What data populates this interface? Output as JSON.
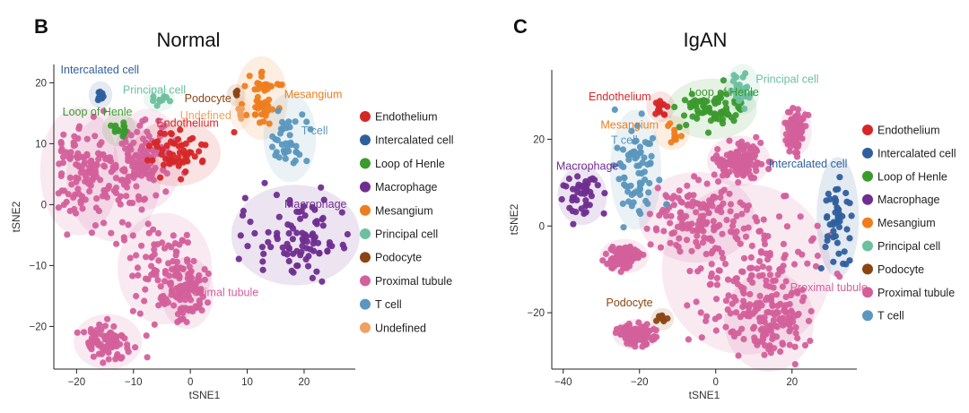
{
  "colors": {
    "Endothelium": "#d62728",
    "Intercalated cell": "#2f5f9e",
    "Loop of Henle": "#3b9a2e",
    "Macrophage": "#6f2e8f",
    "Mesangium": "#ee7d1e",
    "Principal cell": "#6cc0a0",
    "Podocyte": "#8b4513",
    "Proximal tubule": "#d3609b",
    "T cell": "#5b97bd",
    "Undefined": "#f0a060"
  },
  "chart_data": [
    {
      "type": "scatter",
      "panel_label": "B",
      "title": "Normal",
      "xlabel": "tSNE1",
      "ylabel": "tSNE2",
      "xlim": [
        -24,
        29
      ],
      "ylim": [
        -27,
        23
      ],
      "xticks": [
        -20,
        -10,
        0,
        10,
        20
      ],
      "yticks": [
        -20,
        -10,
        0,
        10,
        20
      ],
      "legend": [
        "Endothelium",
        "Intercalated cell",
        "Loop of Henle",
        "Macrophage",
        "Mesangium",
        "Principal cell",
        "Podocyte",
        "Proximal tubule",
        "T cell",
        "Undefined"
      ],
      "annotations": [
        {
          "text": "Intercalated cell",
          "cluster": "Intercalated cell"
        },
        {
          "text": "Principal cell",
          "cluster": "Principal cell"
        },
        {
          "text": "Loop of Henle",
          "cluster": "Loop of Henle"
        },
        {
          "text": "Podocyte",
          "cluster": "Podocyte"
        },
        {
          "text": "Mesangium",
          "cluster": "Mesangium"
        },
        {
          "text": "Undefined",
          "cluster": "Undefined"
        },
        {
          "text": "Endothelium",
          "cluster": "Endothelium"
        },
        {
          "text": "T cell",
          "cluster": "T cell"
        },
        {
          "text": "Macrophage",
          "cluster": "Macrophage"
        },
        {
          "text": "Proximal tubule",
          "cluster": "Proximal tubule"
        }
      ],
      "clusters": [
        {
          "name": "Proximal tubule",
          "points": 520,
          "blobs": [
            {
              "cx": -19.5,
              "cy": 5.5,
              "sx": 2.6,
              "sy": 4.2
            },
            {
              "cx": -13.5,
              "cy": 4.5,
              "sx": 3.2,
              "sy": 4.2
            },
            {
              "cx": -7.5,
              "cy": 7.5,
              "sx": 2.2,
              "sy": 3.2
            },
            {
              "cx": -4.5,
              "cy": -10.5,
              "sx": 3.2,
              "sy": 3.6
            },
            {
              "cx": -0.5,
              "cy": -14.5,
              "sx": 1.6,
              "sy": 2.2
            },
            {
              "cx": -14.5,
              "cy": -22.5,
              "sx": 2.2,
              "sy": 1.6
            }
          ]
        },
        {
          "name": "Endothelium",
          "points": 55,
          "blobs": [
            {
              "cx": -2.5,
              "cy": 8.5,
              "sx": 3.0,
              "sy": 2.0
            }
          ]
        },
        {
          "name": "Intercalated cell",
          "points": 10,
          "blobs": [
            {
              "cx": -15.8,
              "cy": 18.0,
              "sx": 0.5,
              "sy": 0.6
            }
          ]
        },
        {
          "name": "Loop of Henle",
          "points": 14,
          "blobs": [
            {
              "cx": -12.5,
              "cy": 12.3,
              "sx": 0.9,
              "sy": 0.8
            }
          ]
        },
        {
          "name": "Principal cell",
          "points": 9,
          "blobs": [
            {
              "cx": -5.5,
              "cy": 17.3,
              "sx": 0.8,
              "sy": 0.5
            }
          ]
        },
        {
          "name": "Mesangium",
          "points": 48,
          "blobs": [
            {
              "cx": 12.5,
              "cy": 17.5,
              "sx": 1.6,
              "sy": 2.6
            }
          ]
        },
        {
          "name": "Podocyte",
          "points": 4,
          "blobs": [
            {
              "cx": 8.0,
              "cy": 18.0,
              "sx": 0.3,
              "sy": 0.4
            }
          ]
        },
        {
          "name": "Undefined",
          "points": 5,
          "blobs": [
            {
              "cx": 8.8,
              "cy": 15.0,
              "sx": 0.4,
              "sy": 0.8
            }
          ]
        },
        {
          "name": "T cell",
          "points": 38,
          "blobs": [
            {
              "cx": 17.5,
              "cy": 11.0,
              "sx": 1.6,
              "sy": 2.8
            }
          ]
        },
        {
          "name": "Macrophage",
          "points": 95,
          "blobs": [
            {
              "cx": 18.5,
              "cy": -5.0,
              "sx": 4.5,
              "sy": 3.2
            }
          ]
        }
      ]
    },
    {
      "type": "scatter",
      "panel_label": "C",
      "title": "IgAN",
      "xlabel": "tSNE1",
      "ylabel": "tSNE2",
      "xlim": [
        -43,
        37
      ],
      "ylim": [
        -33,
        36
      ],
      "xticks": [
        -40,
        -20,
        0,
        20
      ],
      "yticks": [
        -20,
        0,
        20
      ],
      "legend": [
        "Endothelium",
        "Intercalated cell",
        "Loop of Henle",
        "Macrophage",
        "Mesangium",
        "Principal cell",
        "Podocyte",
        "Proximal tubule",
        "T cell"
      ],
      "annotations": [
        {
          "text": "Endothelium",
          "cluster": "Endothelium"
        },
        {
          "text": "Loop of Henle",
          "cluster": "Loop of Henle"
        },
        {
          "text": "Principal cell",
          "cluster": "Principal cell"
        },
        {
          "text": "Mesangium",
          "cluster": "Mesangium"
        },
        {
          "text": "T cell",
          "cluster": "T cell"
        },
        {
          "text": "Macrophage",
          "cluster": "Macrophage"
        },
        {
          "text": "Intercalated cell",
          "cluster": "Intercalated cell"
        },
        {
          "text": "Proximal tubule",
          "cluster": "Proximal tubule"
        },
        {
          "text": "Podocyte",
          "cluster": "Podocyte"
        }
      ],
      "clusters": [
        {
          "name": "Proximal tubule",
          "points": 900,
          "blobs": [
            {
              "cx": 8.0,
              "cy": -10.0,
              "sx": 9.0,
              "sy": 8.0
            },
            {
              "cx": 14.0,
              "cy": -22.0,
              "sx": 4.5,
              "sy": 4.5
            },
            {
              "cx": -5.0,
              "cy": 2.0,
              "sx": 6.0,
              "sy": 4.0
            },
            {
              "cx": 6.0,
              "cy": 15.0,
              "sx": 3.0,
              "sy": 2.0
            },
            {
              "cx": 21.0,
              "cy": 22.0,
              "sx": 1.2,
              "sy": 2.0
            },
            {
              "cx": -24.0,
              "cy": -7.0,
              "sx": 2.2,
              "sy": 1.2
            },
            {
              "cx": -21.0,
              "cy": -25.0,
              "sx": 2.0,
              "sy": 1.0
            }
          ]
        },
        {
          "name": "Loop of Henle",
          "points": 70,
          "blobs": [
            {
              "cx": -1.0,
              "cy": 27.0,
              "sx": 4.5,
              "sy": 2.5
            }
          ]
        },
        {
          "name": "Principal cell",
          "points": 25,
          "blobs": [
            {
              "cx": 7.0,
              "cy": 31.5,
              "sx": 1.4,
              "sy": 2.0
            }
          ]
        },
        {
          "name": "Endothelium",
          "points": 14,
          "blobs": [
            {
              "cx": -14.5,
              "cy": 27.5,
              "sx": 1.0,
              "sy": 1.0
            }
          ]
        },
        {
          "name": "Mesangium",
          "points": 10,
          "blobs": [
            {
              "cx": -11.5,
              "cy": 21.5,
              "sx": 1.4,
              "sy": 1.2
            }
          ]
        },
        {
          "name": "T cell",
          "points": 75,
          "blobs": [
            {
              "cx": -21.0,
              "cy": 13.0,
              "sx": 2.3,
              "sy": 5.5
            }
          ]
        },
        {
          "name": "Macrophage",
          "points": 42,
          "blobs": [
            {
              "cx": -35.0,
              "cy": 7.0,
              "sx": 2.2,
              "sy": 2.4
            }
          ]
        },
        {
          "name": "Intercalated cell",
          "points": 45,
          "blobs": [
            {
              "cx": 32.0,
              "cy": 2.0,
              "sx": 1.8,
              "sy": 5.5
            }
          ]
        },
        {
          "name": "Podocyte",
          "points": 7,
          "blobs": [
            {
              "cx": -14.0,
              "cy": -21.5,
              "sx": 0.7,
              "sy": 0.6
            }
          ]
        }
      ]
    }
  ]
}
